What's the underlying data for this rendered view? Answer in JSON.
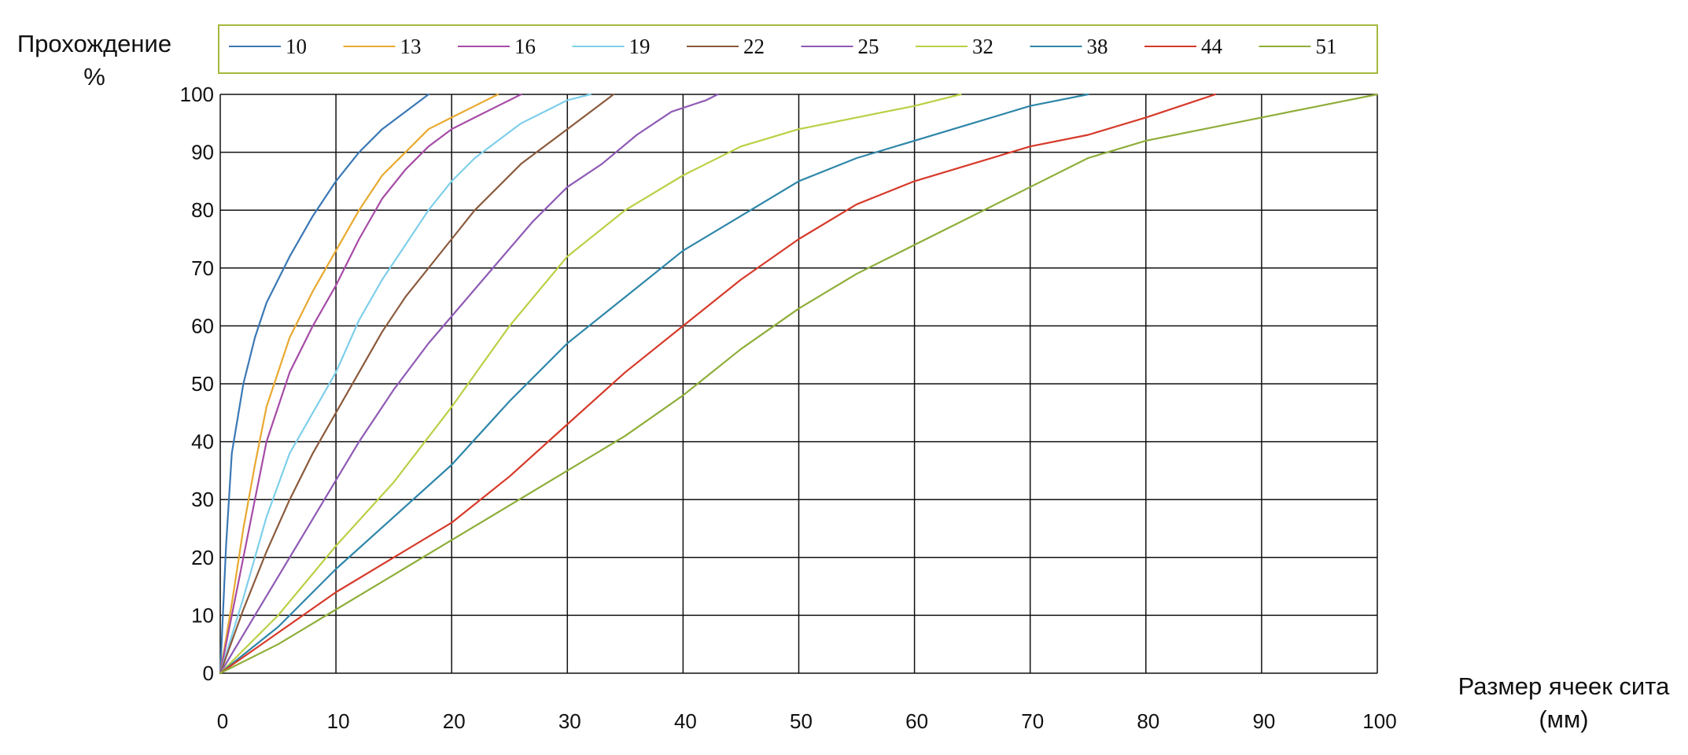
{
  "chart_data": {
    "type": "line",
    "title": "",
    "xlabel": [
      "Размер ячеек сита",
      "(мм)"
    ],
    "ylabel": [
      "Прохождение",
      "%"
    ],
    "xlim": [
      0,
      100
    ],
    "ylim": [
      0,
      100
    ],
    "x_ticks": [
      0,
      10,
      20,
      30,
      40,
      50,
      60,
      70,
      80,
      90,
      100
    ],
    "y_ticks": [
      0,
      10,
      20,
      30,
      40,
      50,
      60,
      70,
      80,
      90,
      100
    ],
    "grid": true,
    "legend_position": "top",
    "series": [
      {
        "name": "10",
        "color": "#3a78b5",
        "points": [
          [
            0,
            0
          ],
          [
            0.5,
            22
          ],
          [
            1,
            38
          ],
          [
            2,
            50
          ],
          [
            3,
            58
          ],
          [
            4,
            64
          ],
          [
            6,
            72
          ],
          [
            8,
            79
          ],
          [
            10,
            85
          ],
          [
            12,
            90
          ],
          [
            14,
            94
          ],
          [
            16,
            97
          ],
          [
            18,
            100
          ]
        ]
      },
      {
        "name": "13",
        "color": "#e8a930",
        "points": [
          [
            0,
            0
          ],
          [
            1,
            12
          ],
          [
            2,
            25
          ],
          [
            3,
            36
          ],
          [
            4,
            46
          ],
          [
            6,
            58
          ],
          [
            8,
            66
          ],
          [
            10,
            73
          ],
          [
            12,
            80
          ],
          [
            14,
            86
          ],
          [
            16,
            90
          ],
          [
            18,
            94
          ],
          [
            20,
            96
          ],
          [
            22,
            98
          ],
          [
            24,
            100
          ]
        ]
      },
      {
        "name": "16",
        "color": "#a64ca6",
        "points": [
          [
            0,
            0
          ],
          [
            1,
            10
          ],
          [
            2,
            20
          ],
          [
            3,
            30
          ],
          [
            4,
            40
          ],
          [
            6,
            52
          ],
          [
            8,
            60
          ],
          [
            10,
            67
          ],
          [
            12,
            75
          ],
          [
            14,
            82
          ],
          [
            16,
            87
          ],
          [
            18,
            91
          ],
          [
            20,
            94
          ],
          [
            22,
            96
          ],
          [
            24,
            98
          ],
          [
            26,
            100
          ]
        ]
      },
      {
        "name": "19",
        "color": "#7ecfea",
        "points": [
          [
            0,
            0
          ],
          [
            2,
            13
          ],
          [
            4,
            27
          ],
          [
            6,
            38
          ],
          [
            8,
            45
          ],
          [
            10,
            52
          ],
          [
            12,
            61
          ],
          [
            14,
            68
          ],
          [
            16,
            74
          ],
          [
            18,
            80
          ],
          [
            20,
            85
          ],
          [
            22,
            89
          ],
          [
            24,
            92
          ],
          [
            26,
            95
          ],
          [
            28,
            97
          ],
          [
            30,
            99
          ],
          [
            32,
            100
          ]
        ]
      },
      {
        "name": "22",
        "color": "#8b5a3c",
        "points": [
          [
            0,
            0
          ],
          [
            2,
            11
          ],
          [
            4,
            21
          ],
          [
            6,
            30
          ],
          [
            8,
            38
          ],
          [
            10,
            45
          ],
          [
            12,
            52
          ],
          [
            14,
            59
          ],
          [
            16,
            65
          ],
          [
            18,
            70
          ],
          [
            20,
            75
          ],
          [
            22,
            80
          ],
          [
            24,
            84
          ],
          [
            26,
            88
          ],
          [
            28,
            91
          ],
          [
            30,
            94
          ],
          [
            32,
            97
          ],
          [
            34,
            100
          ]
        ]
      },
      {
        "name": "25",
        "color": "#8e5ab5",
        "points": [
          [
            0,
            0
          ],
          [
            3,
            10
          ],
          [
            6,
            20
          ],
          [
            9,
            30
          ],
          [
            12,
            40
          ],
          [
            15,
            49
          ],
          [
            18,
            57
          ],
          [
            21,
            64
          ],
          [
            24,
            71
          ],
          [
            27,
            78
          ],
          [
            30,
            84
          ],
          [
            33,
            88
          ],
          [
            36,
            93
          ],
          [
            39,
            97
          ],
          [
            42,
            99
          ],
          [
            43,
            100
          ]
        ]
      },
      {
        "name": "32",
        "color": "#bccf45",
        "points": [
          [
            0,
            0
          ],
          [
            5,
            10
          ],
          [
            10,
            22
          ],
          [
            15,
            33
          ],
          [
            20,
            46
          ],
          [
            25,
            60
          ],
          [
            30,
            72
          ],
          [
            35,
            80
          ],
          [
            40,
            86
          ],
          [
            45,
            91
          ],
          [
            50,
            94
          ],
          [
            55,
            96
          ],
          [
            60,
            98
          ],
          [
            64,
            100
          ]
        ]
      },
      {
        "name": "38",
        "color": "#2e86a9",
        "points": [
          [
            0,
            0
          ],
          [
            5,
            8
          ],
          [
            10,
            18
          ],
          [
            15,
            27
          ],
          [
            20,
            36
          ],
          [
            25,
            47
          ],
          [
            30,
            57
          ],
          [
            35,
            65
          ],
          [
            40,
            73
          ],
          [
            45,
            79
          ],
          [
            50,
            85
          ],
          [
            55,
            89
          ],
          [
            60,
            92
          ],
          [
            65,
            95
          ],
          [
            70,
            98
          ],
          [
            75,
            100
          ]
        ]
      },
      {
        "name": "44",
        "color": "#d63a2a",
        "points": [
          [
            0,
            0
          ],
          [
            5,
            7
          ],
          [
            10,
            14
          ],
          [
            15,
            20
          ],
          [
            20,
            26
          ],
          [
            25,
            34
          ],
          [
            30,
            43
          ],
          [
            35,
            52
          ],
          [
            40,
            60
          ],
          [
            45,
            68
          ],
          [
            50,
            75
          ],
          [
            55,
            81
          ],
          [
            60,
            85
          ],
          [
            65,
            88
          ],
          [
            70,
            91
          ],
          [
            75,
            93
          ],
          [
            80,
            96
          ],
          [
            86,
            100
          ]
        ]
      },
      {
        "name": "51",
        "color": "#8fae3a",
        "points": [
          [
            0,
            0
          ],
          [
            5,
            5
          ],
          [
            10,
            11
          ],
          [
            15,
            17
          ],
          [
            20,
            23
          ],
          [
            25,
            29
          ],
          [
            30,
            35
          ],
          [
            35,
            41
          ],
          [
            40,
            48
          ],
          [
            45,
            56
          ],
          [
            50,
            63
          ],
          [
            55,
            69
          ],
          [
            60,
            74
          ],
          [
            65,
            79
          ],
          [
            70,
            84
          ],
          [
            75,
            89
          ],
          [
            80,
            92
          ],
          [
            85,
            94
          ],
          [
            90,
            96
          ],
          [
            95,
            98
          ],
          [
            100,
            100
          ]
        ]
      }
    ]
  },
  "colors": {
    "legend_border": "#a7b83c",
    "grid": "#111111",
    "text": "#111111"
  }
}
